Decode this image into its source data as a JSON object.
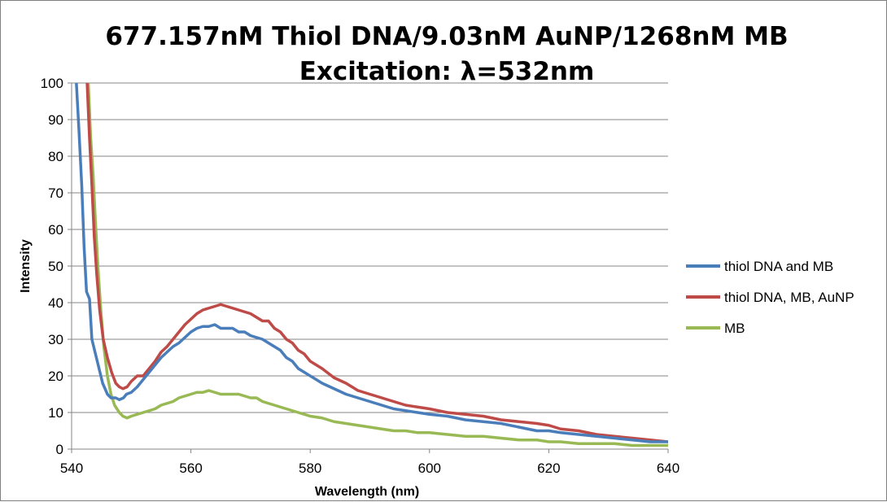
{
  "chart_data": {
    "type": "line",
    "title": [
      "677.157nM Thiol DNA/9.03nM AuNP/1268nM MB",
      "Excitation: λ=532nm"
    ],
    "xlabel": "Wavelength (nm)",
    "ylabel": "Intensity",
    "xlim": [
      540,
      640
    ],
    "ylim": [
      0,
      100
    ],
    "xticks": [
      540,
      560,
      580,
      600,
      620,
      640
    ],
    "yticks": [
      0,
      10,
      20,
      30,
      40,
      50,
      60,
      70,
      80,
      90,
      100
    ],
    "grid": "horizontal",
    "legend_position": "right",
    "series": [
      {
        "name": "thiol DNA and MB",
        "color": "#4a7ebb",
        "points": [
          [
            540.8,
            100
          ],
          [
            541.2,
            88
          ],
          [
            541.7,
            72
          ],
          [
            542.1,
            55
          ],
          [
            542.5,
            43
          ],
          [
            543,
            41
          ],
          [
            543.4,
            30
          ],
          [
            544,
            26
          ],
          [
            544.6,
            22
          ],
          [
            545.2,
            18
          ],
          [
            546,
            15
          ],
          [
            546.6,
            14
          ],
          [
            547.4,
            14
          ],
          [
            548,
            13.5
          ],
          [
            548.7,
            14
          ],
          [
            549.2,
            15
          ],
          [
            550,
            15.5
          ],
          [
            551,
            17
          ],
          [
            552,
            19
          ],
          [
            553,
            21
          ],
          [
            554,
            23
          ],
          [
            555,
            25
          ],
          [
            556,
            26.5
          ],
          [
            557,
            28
          ],
          [
            558,
            29
          ],
          [
            559,
            30.5
          ],
          [
            560,
            32
          ],
          [
            561,
            33
          ],
          [
            562,
            33.5
          ],
          [
            563,
            33.5
          ],
          [
            564,
            34
          ],
          [
            565,
            33
          ],
          [
            566,
            33
          ],
          [
            567,
            33
          ],
          [
            568,
            32
          ],
          [
            569,
            32
          ],
          [
            570,
            31
          ],
          [
            571,
            30.5
          ],
          [
            572,
            30
          ],
          [
            573,
            29
          ],
          [
            574,
            28
          ],
          [
            575,
            27
          ],
          [
            576,
            25
          ],
          [
            577,
            24
          ],
          [
            578,
            22
          ],
          [
            579,
            21
          ],
          [
            580,
            20
          ],
          [
            582,
            18
          ],
          [
            584,
            16.5
          ],
          [
            586,
            15
          ],
          [
            588,
            14
          ],
          [
            590,
            13
          ],
          [
            592,
            12
          ],
          [
            594,
            11
          ],
          [
            596,
            10.5
          ],
          [
            598,
            10
          ],
          [
            600,
            9.5
          ],
          [
            603,
            9
          ],
          [
            606,
            8
          ],
          [
            609,
            7.5
          ],
          [
            612,
            7
          ],
          [
            615,
            6
          ],
          [
            618,
            5
          ],
          [
            620,
            5
          ],
          [
            622,
            4.5
          ],
          [
            625,
            4
          ],
          [
            628,
            3.5
          ],
          [
            631,
            3
          ],
          [
            634,
            2.5
          ],
          [
            637,
            2
          ],
          [
            640,
            2
          ]
        ]
      },
      {
        "name": "thiol DNA, MB, AuNP",
        "color": "#be4b48",
        "points": [
          [
            542.6,
            100
          ],
          [
            543,
            85
          ],
          [
            543.4,
            72
          ],
          [
            543.8,
            58
          ],
          [
            544.2,
            48
          ],
          [
            544.7,
            38
          ],
          [
            545.3,
            30
          ],
          [
            546,
            25
          ],
          [
            546.7,
            21
          ],
          [
            547.4,
            18
          ],
          [
            548,
            17
          ],
          [
            548.6,
            16.5
          ],
          [
            549.3,
            17
          ],
          [
            550,
            18.5
          ],
          [
            551,
            20
          ],
          [
            552,
            20
          ],
          [
            553,
            22
          ],
          [
            554,
            24
          ],
          [
            555,
            26.5
          ],
          [
            556,
            28
          ],
          [
            557,
            30
          ],
          [
            558,
            32
          ],
          [
            559,
            34
          ],
          [
            560,
            35.5
          ],
          [
            561,
            37
          ],
          [
            562,
            38
          ],
          [
            563,
            38.5
          ],
          [
            564,
            39
          ],
          [
            565,
            39.5
          ],
          [
            566,
            39
          ],
          [
            567,
            38.5
          ],
          [
            568,
            38
          ],
          [
            569,
            37.5
          ],
          [
            570,
            37
          ],
          [
            571,
            36
          ],
          [
            572,
            35
          ],
          [
            573,
            35
          ],
          [
            574,
            33
          ],
          [
            575,
            32
          ],
          [
            576,
            30
          ],
          [
            577,
            29
          ],
          [
            578,
            27
          ],
          [
            579,
            26
          ],
          [
            580,
            24
          ],
          [
            582,
            22
          ],
          [
            584,
            19.5
          ],
          [
            586,
            18
          ],
          [
            588,
            16
          ],
          [
            590,
            15
          ],
          [
            592,
            14
          ],
          [
            594,
            13
          ],
          [
            596,
            12
          ],
          [
            598,
            11.5
          ],
          [
            600,
            11
          ],
          [
            603,
            10
          ],
          [
            606,
            9.5
          ],
          [
            609,
            9
          ],
          [
            612,
            8
          ],
          [
            615,
            7.5
          ],
          [
            618,
            7
          ],
          [
            620,
            6.5
          ],
          [
            622,
            5.5
          ],
          [
            625,
            5
          ],
          [
            628,
            4
          ],
          [
            631,
            3.5
          ],
          [
            634,
            3
          ],
          [
            637,
            2.5
          ],
          [
            640,
            2
          ]
        ]
      },
      {
        "name": "MB",
        "color": "#98b954",
        "points": [
          [
            542.8,
            100
          ],
          [
            543.2,
            85
          ],
          [
            543.6,
            75
          ],
          [
            544,
            62
          ],
          [
            544.4,
            50
          ],
          [
            544.9,
            38
          ],
          [
            545.4,
            28
          ],
          [
            546,
            20
          ],
          [
            546.6,
            15
          ],
          [
            547.2,
            12
          ],
          [
            548,
            10
          ],
          [
            548.6,
            9
          ],
          [
            549.3,
            8.5
          ],
          [
            550,
            9
          ],
          [
            551,
            9.5
          ],
          [
            552,
            10
          ],
          [
            553,
            10.5
          ],
          [
            554,
            11
          ],
          [
            555,
            12
          ],
          [
            556,
            12.5
          ],
          [
            557,
            13
          ],
          [
            558,
            14
          ],
          [
            559,
            14.5
          ],
          [
            560,
            15
          ],
          [
            561,
            15.5
          ],
          [
            562,
            15.5
          ],
          [
            563,
            16
          ],
          [
            564,
            15.5
          ],
          [
            565,
            15
          ],
          [
            566,
            15
          ],
          [
            567,
            15
          ],
          [
            568,
            15
          ],
          [
            569,
            14.5
          ],
          [
            570,
            14
          ],
          [
            571,
            14
          ],
          [
            572,
            13
          ],
          [
            573,
            12.5
          ],
          [
            574,
            12
          ],
          [
            575,
            11.5
          ],
          [
            576,
            11
          ],
          [
            577,
            10.5
          ],
          [
            578,
            10
          ],
          [
            580,
            9
          ],
          [
            582,
            8.5
          ],
          [
            584,
            7.5
          ],
          [
            586,
            7
          ],
          [
            588,
            6.5
          ],
          [
            590,
            6
          ],
          [
            592,
            5.5
          ],
          [
            594,
            5
          ],
          [
            596,
            5
          ],
          [
            598,
            4.5
          ],
          [
            600,
            4.5
          ],
          [
            603,
            4
          ],
          [
            606,
            3.5
          ],
          [
            609,
            3.5
          ],
          [
            612,
            3
          ],
          [
            615,
            2.5
          ],
          [
            618,
            2.5
          ],
          [
            620,
            2
          ],
          [
            622,
            2
          ],
          [
            625,
            1.5
          ],
          [
            628,
            1.5
          ],
          [
            631,
            1.5
          ],
          [
            634,
            1
          ],
          [
            637,
            1
          ],
          [
            640,
            1
          ]
        ]
      }
    ]
  }
}
